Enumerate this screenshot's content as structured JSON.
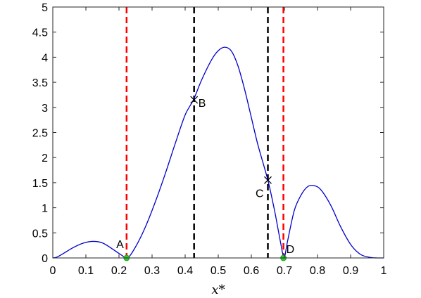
{
  "chart_data": {
    "type": "line",
    "title": "",
    "xlabel": "x*",
    "ylabel": "",
    "xlim": [
      0,
      1
    ],
    "ylim": [
      0,
      5
    ],
    "grid": false,
    "legend": "none",
    "x_ticks": [
      0,
      0.1,
      0.2,
      0.3,
      0.4,
      0.5,
      0.6,
      0.7,
      0.8,
      0.9,
      1
    ],
    "x_tick_labels": [
      "0",
      "0.1",
      "0.2",
      "0.3",
      "0.4",
      "0.5",
      "0.6",
      "0.7",
      "0.8",
      "0.9",
      "1"
    ],
    "y_ticks": [
      0,
      0.5,
      1,
      1.5,
      2,
      2.5,
      3,
      3.5,
      4,
      4.5,
      5
    ],
    "y_tick_labels": [
      "0",
      "0.5",
      "1",
      "1.5",
      "2",
      "2.5",
      "3",
      "3.5",
      "4",
      "4.5",
      "5"
    ],
    "series": [
      {
        "color": "#0000cc",
        "x": [
          0,
          0.01,
          0.03,
          0.06,
          0.09,
          0.12,
          0.15,
          0.18,
          0.2,
          0.225,
          0.25,
          0.28,
          0.31,
          0.34,
          0.37,
          0.4,
          0.425,
          0.45,
          0.48,
          0.5,
          0.52,
          0.54,
          0.56,
          0.58,
          0.6,
          0.62,
          0.65,
          0.67,
          0.68,
          0.69,
          0.695,
          0.7,
          0.71,
          0.73,
          0.75,
          0.77,
          0.79,
          0.81,
          0.84,
          0.87,
          0.9,
          0.93,
          0.96,
          0.98,
          1
        ],
        "y": [
          0,
          0.01,
          0.08,
          0.2,
          0.29,
          0.33,
          0.3,
          0.18,
          0.09,
          0,
          0.22,
          0.62,
          1.12,
          1.68,
          2.28,
          2.85,
          3.15,
          3.55,
          3.95,
          4.13,
          4.2,
          4.12,
          3.82,
          3.35,
          2.8,
          2.25,
          1.55,
          0.95,
          0.6,
          0.25,
          0.08,
          0,
          0.35,
          0.95,
          1.25,
          1.42,
          1.44,
          1.36,
          1.05,
          0.62,
          0.27,
          0.07,
          0.01,
          0,
          0
        ]
      }
    ],
    "vertical_lines": [
      {
        "x": 0.223,
        "color": "#ff0000",
        "style": "dashed"
      },
      {
        "x": 0.427,
        "color": "#000000",
        "style": "dashed"
      },
      {
        "x": 0.65,
        "color": "#000000",
        "style": "dashed"
      },
      {
        "x": 0.697,
        "color": "#ff0000",
        "style": "dashed"
      }
    ],
    "markers": [
      {
        "label": "A",
        "x": 0.223,
        "y": 0,
        "marker": "circle",
        "color": "#33cc33",
        "label_pos": "upper-left"
      },
      {
        "label": "B",
        "x": 0.427,
        "y": 3.15,
        "marker": "x",
        "color": "#000000",
        "label_pos": "right"
      },
      {
        "label": "C",
        "x": 0.65,
        "y": 1.55,
        "marker": "x",
        "color": "#000000",
        "label_pos": "lower-left"
      },
      {
        "label": "D",
        "x": 0.697,
        "y": 0,
        "marker": "circle",
        "color": "#33cc33",
        "label_pos": "upper-right"
      }
    ]
  }
}
